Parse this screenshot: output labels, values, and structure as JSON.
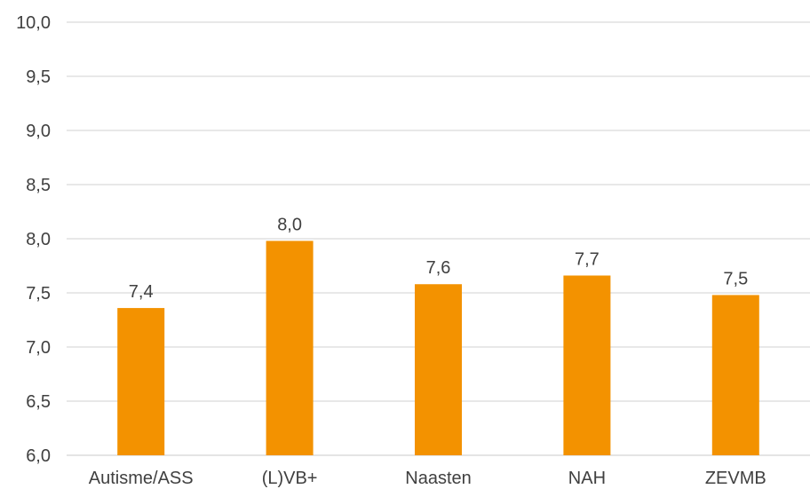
{
  "chart_data": {
    "type": "bar",
    "categories": [
      "Autisme/ASS",
      "(L)VB+",
      "Naasten",
      "NAH",
      "ZEVMB"
    ],
    "values": [
      7.36,
      7.98,
      7.58,
      7.66,
      7.48
    ],
    "data_labels": [
      "7,4",
      "8,0",
      "7,6",
      "7,7",
      "7,5"
    ],
    "yticks": [
      6.0,
      6.5,
      7.0,
      7.5,
      8.0,
      8.5,
      9.0,
      9.5,
      10.0
    ],
    "ytick_labels": [
      "6,0",
      "6,5",
      "7,0",
      "7,5",
      "8,0",
      "8,5",
      "9,0",
      "9,5",
      "10,0"
    ],
    "ylim": [
      6.0,
      10.0
    ],
    "grid": true,
    "legend": "none",
    "bar_color": "#F39200",
    "grid_color": "#D9D9D9",
    "text_color": "#404040"
  }
}
